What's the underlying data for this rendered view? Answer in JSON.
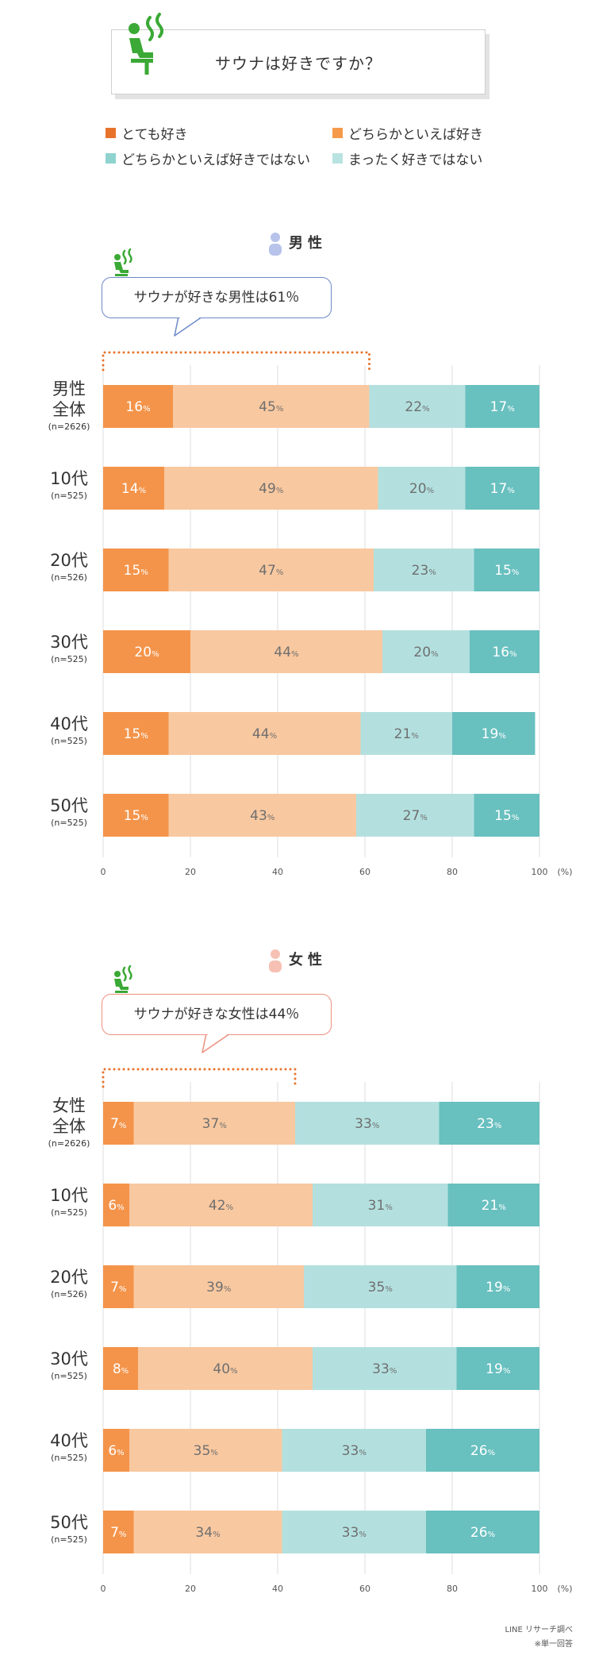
{
  "title": "サウナは好きですか？",
  "legend": [
    {
      "label": "とても好き",
      "color": "#e8732a"
    },
    {
      "label": "どちらかといえば好き",
      "color": "#f49a4a"
    },
    {
      "label": "どちらかといえば好きではない",
      "color": "#8fd3cf"
    },
    {
      "label": "まったく好きではない",
      "color": "#b8e3e1"
    }
  ],
  "colors": {
    "very_like": "#f4944a",
    "somewhat_like": "#f8c8a0",
    "somewhat_dislike": "#b3e0df",
    "not_at_all": "#68c0bf",
    "male_accent": "#6d89c7",
    "female_accent": "#ee8f7e",
    "male_icon": "#b7c3ea",
    "female_icon": "#f6c1b4",
    "dotted": "#e8732a",
    "icon_green": "#3aa935"
  },
  "percent_unit": "%",
  "axis_unit": "(%)",
  "axis_ticks": [
    "0",
    "20",
    "40",
    "60",
    "80",
    "100"
  ],
  "male": {
    "label": "男性",
    "callout": "サウナが好きな男性は61％"
  },
  "female": {
    "label": "女性",
    "callout": "サウナが好きな女性は44％"
  },
  "chart_data": [
    {
      "type": "bar",
      "stacked": true,
      "orientation": "horizontal",
      "xlim": [
        0,
        100
      ],
      "categories": [
        {
          "name": [
            "男性",
            "全体"
          ],
          "n": "(n=2626)"
        },
        {
          "name": [
            "10代"
          ],
          "n": "(n=525)"
        },
        {
          "name": [
            "20代"
          ],
          "n": "(n=526)"
        },
        {
          "name": [
            "30代"
          ],
          "n": "(n=525)"
        },
        {
          "name": [
            "40代"
          ],
          "n": "(n=525)"
        },
        {
          "name": [
            "50代"
          ],
          "n": "(n=525)"
        }
      ],
      "series": [
        {
          "name": "とても好き",
          "values": [
            16,
            14,
            15,
            20,
            15,
            15
          ]
        },
        {
          "name": "どちらかといえば好き",
          "values": [
            45,
            49,
            47,
            44,
            44,
            43
          ]
        },
        {
          "name": "どちらかといえば好きではない",
          "values": [
            22,
            20,
            23,
            20,
            21,
            27
          ]
        },
        {
          "name": "まったく好きではない",
          "values": [
            17,
            17,
            15,
            16,
            19,
            15
          ]
        }
      ],
      "highlight_like_total": 61
    },
    {
      "type": "bar",
      "stacked": true,
      "orientation": "horizontal",
      "xlim": [
        0,
        100
      ],
      "categories": [
        {
          "name": [
            "女性",
            "全体"
          ],
          "n": "(n=2626)"
        },
        {
          "name": [
            "10代"
          ],
          "n": "(n=525)"
        },
        {
          "name": [
            "20代"
          ],
          "n": "(n=526)"
        },
        {
          "name": [
            "30代"
          ],
          "n": "(n=525)"
        },
        {
          "name": [
            "40代"
          ],
          "n": "(n=525)"
        },
        {
          "name": [
            "50代"
          ],
          "n": "(n=525)"
        }
      ],
      "series": [
        {
          "name": "とても好き",
          "values": [
            7,
            6,
            7,
            8,
            6,
            7
          ]
        },
        {
          "name": "どちらかといえば好き",
          "values": [
            37,
            42,
            39,
            40,
            35,
            34
          ]
        },
        {
          "name": "どちらかといえば好きではない",
          "values": [
            33,
            31,
            35,
            33,
            33,
            33
          ]
        },
        {
          "name": "まったく好きではない",
          "values": [
            23,
            21,
            19,
            19,
            26,
            26
          ]
        }
      ],
      "highlight_like_total": 44
    }
  ],
  "footer": {
    "source": "LINE リサーチ調べ",
    "note": "※単一回答"
  }
}
